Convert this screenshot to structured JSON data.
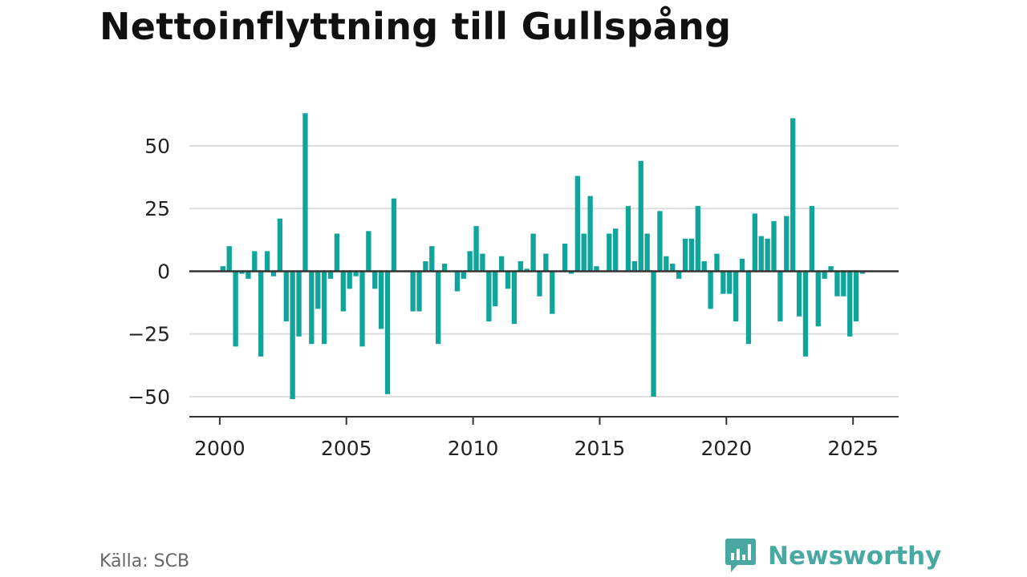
{
  "title": "Nettoinflyttning till Gullspång",
  "source": "Källa: SCB",
  "brand": "Newsworthy",
  "colors": {
    "bar": "#0fa59b",
    "zero_line": "#333333",
    "grid": "#dddddd",
    "brand": "#49a9a2"
  },
  "chart_data": {
    "type": "bar",
    "title": "Nettoinflyttning till Gullspång",
    "xlabel": "",
    "ylabel": "",
    "grid": true,
    "ylim": [
      -58,
      65
    ],
    "xlim": [
      1998.8,
      2026.8
    ],
    "x_ticks": [
      2000,
      2005,
      2010,
      2015,
      2020,
      2025
    ],
    "x_tick_labels": [
      "2000",
      "2005",
      "2010",
      "2015",
      "2020",
      "2025"
    ],
    "y_ticks": [
      50,
      25,
      0,
      -25,
      -50
    ],
    "y_tick_labels": [
      "50",
      "25",
      "0",
      "−25",
      "−50"
    ],
    "x_unit": "quarter",
    "x_start": "2000-Q1",
    "values": [
      2,
      10,
      -30,
      -1,
      -3,
      8,
      -34,
      8,
      -2,
      21,
      -20,
      -51,
      -26,
      63,
      -29,
      -15,
      -29,
      -3,
      15,
      -16,
      -7,
      -2,
      -30,
      16,
      -7,
      -23,
      -49,
      29,
      0,
      0,
      -16,
      -16,
      4,
      10,
      -29,
      3,
      0,
      -8,
      -3,
      8,
      18,
      7,
      -20,
      -14,
      6,
      -7,
      -21,
      4,
      1,
      15,
      -10,
      7,
      -17,
      0,
      11,
      -1,
      38,
      15,
      30,
      2,
      0,
      15,
      17,
      0,
      26,
      4,
      44,
      15,
      -50,
      24,
      6,
      3,
      -3,
      13,
      13,
      26,
      4,
      -15,
      7,
      -9,
      -9,
      -20,
      5,
      -29,
      23,
      14,
      13,
      20,
      -20,
      22,
      61,
      -18,
      -34,
      26,
      -22,
      -3,
      2,
      -10,
      -10,
      -26,
      -20,
      -1
    ]
  }
}
